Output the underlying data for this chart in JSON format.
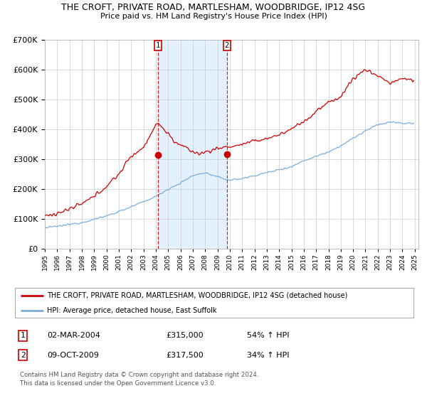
{
  "title": "THE CROFT, PRIVATE ROAD, MARTLESHAM, WOODBRIDGE, IP12 4SG",
  "subtitle": "Price paid vs. HM Land Registry's House Price Index (HPI)",
  "legend_line1": "THE CROFT, PRIVATE ROAD, MARTLESHAM, WOODBRIDGE, IP12 4SG (detached house)",
  "legend_line2": "HPI: Average price, detached house, East Suffolk",
  "transaction1_date": "02-MAR-2004",
  "transaction1_price": "£315,000",
  "transaction1_hpi": "54% ↑ HPI",
  "transaction2_date": "09-OCT-2009",
  "transaction2_price": "£317,500",
  "transaction2_hpi": "34% ↑ HPI",
  "footer": "Contains HM Land Registry data © Crown copyright and database right 2024.\nThis data is licensed under the Open Government Licence v3.0.",
  "red_color": "#cc0000",
  "blue_color": "#7aaddc",
  "bg_shade_color": "#ddeeff",
  "grid_color": "#cccccc",
  "ylim": [
    0,
    700000
  ],
  "start_year": 1995,
  "end_year": 2025,
  "t1_year_float": 2004.17,
  "t2_year_float": 2009.75,
  "t1_price": 315000,
  "t2_price": 317500,
  "hpi_keypoints_x": [
    0,
    12,
    36,
    60,
    84,
    108,
    120,
    132,
    144,
    156,
    168,
    180,
    192,
    204,
    216,
    228,
    240,
    252,
    264,
    276,
    288,
    300,
    312,
    324,
    336,
    348,
    359
  ],
  "hpi_keypoints_y": [
    70000,
    75000,
    88000,
    110000,
    140000,
    175000,
    200000,
    220000,
    245000,
    255000,
    240000,
    230000,
    235000,
    245000,
    255000,
    265000,
    275000,
    295000,
    310000,
    325000,
    345000,
    370000,
    395000,
    415000,
    425000,
    420000,
    420000
  ],
  "red_keypoints_x": [
    0,
    12,
    24,
    36,
    48,
    60,
    72,
    84,
    96,
    108,
    111,
    126,
    138,
    150,
    162,
    174,
    186,
    198,
    210,
    222,
    234,
    246,
    258,
    264,
    270,
    276,
    288,
    300,
    312,
    324,
    336,
    348,
    359
  ],
  "red_keypoints_y": [
    110000,
    118000,
    133000,
    150000,
    175000,
    210000,
    250000,
    310000,
    340000,
    415000,
    420000,
    360000,
    335000,
    317500,
    330000,
    340000,
    345000,
    355000,
    365000,
    375000,
    390000,
    415000,
    440000,
    460000,
    475000,
    490000,
    510000,
    570000,
    600000,
    580000,
    555000,
    570000,
    565000
  ]
}
